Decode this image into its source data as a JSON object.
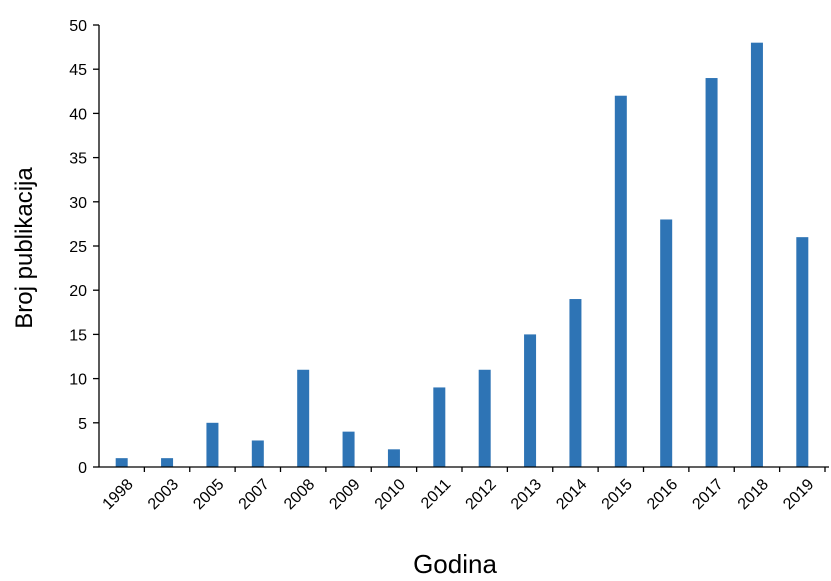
{
  "chart_data": {
    "type": "bar",
    "title": "",
    "xlabel": "Godina",
    "ylabel": "Broj publikacija",
    "categories": [
      "1998",
      "2003",
      "2005",
      "2007",
      "2008",
      "2009",
      "2010",
      "2011",
      "2012",
      "2013",
      "2014",
      "2015",
      "2016",
      "2017",
      "2018",
      "2019"
    ],
    "values": [
      1,
      1,
      5,
      3,
      11,
      4,
      2,
      9,
      11,
      15,
      19,
      42,
      28,
      44,
      48,
      26
    ],
    "ylim": [
      0,
      50
    ],
    "yticks": [
      "0",
      "5",
      "10",
      "15",
      "20",
      "25",
      "30",
      "35",
      "40",
      "45",
      "50"
    ],
    "grid": false,
    "legend": "none",
    "bar_color": "#2E74B5"
  }
}
